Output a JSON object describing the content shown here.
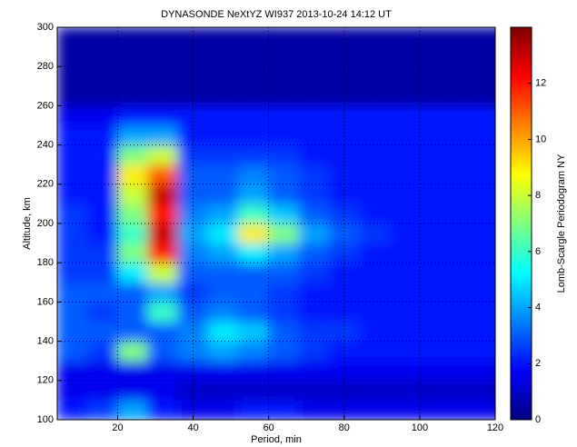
{
  "chart_data": {
    "type": "heatmap",
    "title": "DYNASONDE NeXtYZ WI937 2013-10-24 14:12 UT",
    "xlabel": "Period, min",
    "ylabel": "Altitude, km",
    "colorbar_label": "Lomb-Scargle Periodogram NY",
    "xlim": [
      4,
      120
    ],
    "ylim": [
      100,
      300
    ],
    "clim": [
      0,
      14
    ],
    "xticks": [
      20,
      40,
      60,
      80,
      100,
      120
    ],
    "yticks": [
      100,
      120,
      140,
      160,
      180,
      200,
      220,
      240,
      260,
      280,
      300
    ],
    "cticks": [
      0,
      2,
      4,
      6,
      8,
      10,
      12
    ],
    "grid": true,
    "colormap": "jet",
    "x": [
      8,
      16,
      24,
      32,
      40,
      48,
      56,
      64,
      72,
      80,
      88,
      96,
      104,
      112,
      120
    ],
    "y": [
      105,
      115,
      125,
      135,
      145,
      155,
      165,
      175,
      185,
      195,
      205,
      215,
      225,
      235,
      245,
      255,
      265,
      275,
      285,
      295
    ],
    "z": [
      [
        2,
        2.5,
        4,
        2,
        1.5,
        1.5,
        2,
        2,
        1.5,
        1.5,
        1.5,
        1.5,
        1.5,
        1.5,
        1.5
      ],
      [
        1.5,
        1.5,
        1.5,
        1.5,
        1,
        1,
        1,
        1,
        1,
        1,
        1,
        1,
        1,
        1,
        1
      ],
      [
        1.5,
        1.5,
        1.5,
        1.5,
        1.5,
        1.5,
        1.5,
        1.5,
        1.5,
        1.5,
        1.5,
        1.5,
        1.5,
        1.5,
        1.5
      ],
      [
        3,
        2.5,
        7,
        3,
        3.5,
        4,
        3.5,
        3,
        2.5,
        2,
        2,
        2,
        2,
        2,
        2
      ],
      [
        3,
        3,
        3,
        3,
        3.5,
        5,
        4.5,
        3,
        2.5,
        2.5,
        2,
        2,
        2,
        2,
        2
      ],
      [
        3,
        2.5,
        3,
        6,
        3,
        3.5,
        3,
        2.5,
        2,
        2,
        2,
        2,
        2,
        2,
        2
      ],
      [
        3,
        3,
        3,
        4,
        2.5,
        3,
        3,
        2.5,
        2,
        2,
        2,
        2,
        2,
        2,
        2
      ],
      [
        2.5,
        2.5,
        5,
        8,
        3,
        3,
        3,
        3,
        2.5,
        2,
        2,
        2,
        2,
        2,
        2
      ],
      [
        2.5,
        2.5,
        7,
        12,
        3.5,
        4,
        5,
        4,
        3,
        2.5,
        2,
        2,
        2,
        2,
        2
      ],
      [
        2.5,
        2,
        6,
        13,
        4,
        5,
        9,
        7,
        4,
        3,
        2.5,
        2,
        2,
        2,
        2
      ],
      [
        2.5,
        2,
        7,
        12,
        3.5,
        4,
        6,
        4.5,
        3,
        2.5,
        2,
        2,
        2,
        2,
        2
      ],
      [
        2,
        2,
        8,
        13,
        3,
        3,
        4,
        3,
        2.5,
        2,
        2,
        2,
        2,
        2,
        2
      ],
      [
        2,
        2,
        9,
        11,
        3,
        3,
        3.5,
        3,
        2.5,
        2,
        2,
        2,
        2,
        2,
        2
      ],
      [
        2,
        2,
        7,
        8,
        2.5,
        2.5,
        2.5,
        2.5,
        2,
        2,
        2,
        2,
        2,
        2,
        2
      ],
      [
        2,
        2,
        4,
        4,
        2,
        2,
        2,
        2,
        2,
        2,
        2,
        2,
        2,
        2,
        2
      ],
      [
        1.5,
        1.5,
        2,
        2,
        2,
        2,
        2,
        2,
        2,
        2,
        2,
        2,
        2,
        2,
        2
      ],
      [
        0.5,
        0.5,
        0.5,
        0.5,
        0.5,
        0.5,
        0.5,
        0.5,
        0.5,
        0.5,
        0.5,
        0.5,
        0.5,
        0.5,
        0.5
      ],
      [
        0.5,
        0.5,
        0.5,
        0.5,
        0.5,
        0.5,
        0.5,
        0.5,
        0.5,
        0.5,
        0.5,
        0.5,
        0.5,
        0.5,
        0.5
      ],
      [
        0.5,
        0.5,
        0.5,
        0.5,
        0.5,
        0.5,
        0.5,
        0.5,
        0.5,
        0.5,
        0.5,
        0.5,
        0.5,
        0.5,
        0.5
      ],
      [
        0.5,
        0.5,
        0.5,
        0.5,
        0.5,
        0.5,
        0.5,
        0.5,
        0.5,
        0.5,
        0.5,
        0.5,
        0.5,
        0.5,
        0.5
      ]
    ]
  }
}
